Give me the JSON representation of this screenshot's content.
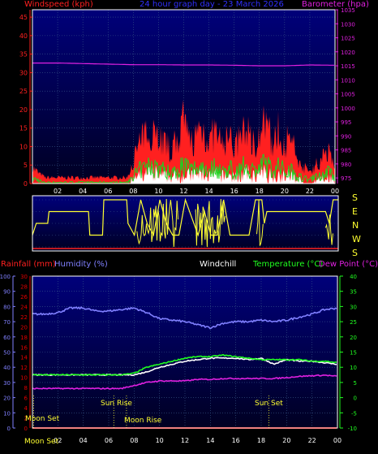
{
  "colors": {
    "background": "#000000",
    "plot_bg_top": "#00007a",
    "plot_bg_bottom": "#000033",
    "grid": "#3a5a8a",
    "frame": "#ffffff",
    "wind": "#ff2020",
    "gust_green": "#20d020",
    "gust_white": "#ffffff",
    "barometer": "#e020e0",
    "direction": "#ffff30",
    "rain": "#e00000",
    "humidity": "#8080ff",
    "windchill": "#ffffff",
    "temperature": "#20ff20",
    "dewpoint": "#e020e0"
  },
  "panel1": {
    "label_windspeed": "Windspeed (kph)",
    "label_title": "24 hour graph day - 23 March 2026",
    "label_barometer": "Barometer (hpa)"
  },
  "panel2": {
    "compass": [
      "S",
      "E",
      "N",
      "W",
      "S"
    ]
  },
  "panel3": {
    "label_rainfall": "Rainfall (mm)",
    "label_humidity": "Humidity (%)",
    "label_windchill": "Windchill",
    "label_temperature": "Temperature (°C)",
    "label_dewpoint": "Dew Point (°C)",
    "ann_moonset_top": "Moon Set",
    "ann_sunrise": "Sun Rise",
    "ann_moonrise": "Moon Rise",
    "ann_sunset": "Sun Set",
    "ann_moonset_bottom": "Moon Set"
  },
  "chart_data": [
    {
      "type": "area",
      "title": "24 hour graph day - 23 March 2026",
      "xlabel": "",
      "x_ticks": [
        "02",
        "04",
        "06",
        "08",
        "10",
        "12",
        "14",
        "16",
        "18",
        "20",
        "22",
        "00"
      ],
      "y_left": {
        "label": "Windspeed (kph)",
        "range": [
          0,
          47
        ],
        "ticks": [
          0,
          5,
          10,
          15,
          20,
          25,
          30,
          35,
          40,
          45
        ]
      },
      "y_right": {
        "label": "Barometer (hpa)",
        "range": [
          973,
          1035
        ],
        "ticks": [
          975,
          980,
          985,
          990,
          995,
          1000,
          1005,
          1010,
          1015,
          1020,
          1025,
          1030,
          1035
        ]
      },
      "grid": true,
      "series": [
        {
          "name": "Windspeed (kph)",
          "axis": "left",
          "x_hours": [
            0,
            1,
            2,
            3,
            4,
            5,
            6,
            7,
            7.5,
            8,
            8.5,
            9,
            9.5,
            10,
            10.5,
            11,
            11.5,
            12,
            12.5,
            13,
            13.5,
            14,
            14.5,
            15,
            15.5,
            16,
            16.5,
            17,
            17.5,
            18,
            18.5,
            19,
            19.5,
            20,
            20.5,
            21,
            21.5,
            22,
            22.5,
            23,
            23.5,
            24
          ],
          "values": [
            4,
            1,
            1,
            1,
            1,
            1,
            1,
            1,
            1,
            6,
            10,
            12,
            14,
            12,
            10,
            8,
            11,
            15,
            10,
            12,
            14,
            10,
            13,
            9,
            12,
            9,
            11,
            14,
            10,
            12,
            15,
            10,
            13,
            10,
            11,
            6,
            4,
            3,
            5,
            6,
            9,
            4
          ]
        },
        {
          "name": "Barometer (hpa)",
          "axis": "right",
          "x_hours": [
            0,
            2,
            4,
            6,
            8,
            10,
            12,
            14,
            16,
            18,
            19,
            20,
            22,
            24
          ],
          "values": [
            1016,
            1016,
            1015.8,
            1015.6,
            1015.4,
            1015.4,
            1015.3,
            1015.3,
            1015.2,
            1015,
            1015,
            1015,
            1015.3,
            1015.2
          ]
        }
      ]
    },
    {
      "type": "line",
      "title": "",
      "x_ticks": [],
      "y_categories": [
        "S",
        "E",
        "N",
        "W",
        "S"
      ],
      "series": [
        {
          "name": "",
          "x_hours": [
            0,
            0.3,
            1.2,
            1.3,
            1.8,
            3.5,
            4.4,
            4.5,
            5.5,
            5.6,
            7.4,
            7.5,
            8,
            8.5,
            9,
            9.5,
            10,
            10.5,
            11,
            11.5,
            12,
            13,
            13.5,
            14,
            14.5,
            15,
            15.5,
            17,
            17.5,
            18,
            18.2,
            18.4,
            20,
            21,
            22,
            23,
            23.3,
            23.6,
            24
          ],
          "direction": [
            "W",
            "N",
            "N",
            "E",
            "E",
            "E",
            "E",
            "W",
            "W",
            "S",
            "S",
            "N",
            "W",
            "S",
            "N",
            "W",
            "S",
            "N",
            "W",
            "W",
            "S",
            "W",
            "E",
            "W",
            "W",
            "S",
            "W",
            "W",
            "S",
            "S",
            "N",
            "E",
            "E",
            "E",
            "E",
            "E",
            "N",
            "S",
            "S"
          ]
        }
      ]
    },
    {
      "type": "line",
      "title": "",
      "x_ticks": [
        "02",
        "04",
        "06",
        "08",
        "10",
        "12",
        "14",
        "16",
        "18",
        "20",
        "22",
        "00"
      ],
      "x_tick_prefix": "Moon Set",
      "y_axes": [
        {
          "label": "Humidity (%)",
          "range": [
            0,
            100
          ],
          "ticks": [
            0,
            10,
            20,
            30,
            40,
            50,
            60,
            70,
            80,
            90,
            100
          ]
        },
        {
          "label": "Rainfall (mm)",
          "range": [
            0,
            30
          ],
          "ticks": [
            0,
            2,
            4,
            6,
            8,
            10,
            12,
            14,
            16,
            18,
            20,
            22,
            24,
            26,
            28,
            30
          ]
        },
        {
          "label": "Temperature (°C)",
          "range": [
            -10,
            40
          ],
          "ticks": [
            -10,
            -5,
            0,
            5,
            10,
            15,
            20,
            25,
            30,
            35,
            40
          ]
        }
      ],
      "grid": true,
      "series": [
        {
          "name": "Humidity (%)",
          "axis": "Humidity (%)",
          "x_hours": [
            0,
            1,
            2,
            3,
            4,
            5,
            6,
            7,
            8,
            9,
            10,
            11,
            12,
            13,
            14,
            15,
            16,
            17,
            18,
            19,
            20,
            21,
            22,
            23,
            24
          ],
          "values": [
            75,
            75,
            76,
            79,
            79,
            77,
            77,
            78,
            79,
            76,
            72,
            71,
            70,
            68,
            66,
            69,
            70,
            70,
            71,
            70,
            71,
            73,
            75,
            78,
            79
          ]
        },
        {
          "name": "Rainfall (mm)",
          "axis": "Rainfall (mm)",
          "x_hours": [
            0,
            24
          ],
          "values": [
            0,
            0
          ]
        },
        {
          "name": "Windchill",
          "axis": "Temperature (°C)",
          "x_hours": [
            0,
            2,
            4,
            6,
            8,
            9,
            10,
            11,
            12,
            13,
            14,
            15,
            16,
            17,
            18,
            19,
            20,
            21,
            22,
            23,
            24
          ],
          "values": [
            7.5,
            7.5,
            7.5,
            7.5,
            7.5,
            8.5,
            10,
            11,
            12,
            12.5,
            13,
            13,
            13,
            12.5,
            13,
            11,
            12.5,
            12,
            12,
            11.5,
            11
          ]
        },
        {
          "name": "Temperature (°C)",
          "axis": "Temperature (°C)",
          "x_hours": [
            0,
            2,
            4,
            6,
            7,
            8,
            9,
            10,
            11,
            12,
            13,
            14,
            15,
            16,
            17,
            18,
            19,
            20,
            21,
            22,
            23,
            24
          ],
          "values": [
            7.5,
            7.5,
            7.5,
            7.5,
            7.5,
            8,
            10,
            11,
            12,
            13,
            13.5,
            13.5,
            14,
            13.5,
            13,
            12.5,
            12.5,
            12.5,
            12.5,
            12,
            12,
            11.5
          ]
        },
        {
          "name": "Dew Point (°C)",
          "axis": "Temperature (°C)",
          "x_hours": [
            0,
            2,
            4,
            6,
            7,
            8,
            9,
            10,
            11,
            12,
            13,
            14,
            15,
            16,
            17,
            18,
            19,
            20,
            21,
            22,
            23,
            24
          ],
          "values": [
            3,
            3,
            3,
            3,
            3,
            4,
            5,
            5.5,
            5.5,
            5.5,
            6,
            6,
            6.3,
            6.3,
            6.3,
            6.3,
            6.3,
            6.6,
            7,
            7.2,
            7.4,
            7
          ]
        }
      ],
      "markers": [
        {
          "label": "Moon Set",
          "hour": 0.1
        },
        {
          "label": "Sun Rise",
          "hour": 6.4
        },
        {
          "label": "Moon Rise",
          "hour": 7.4
        },
        {
          "label": "Sun Set",
          "hour": 18.6
        }
      ]
    }
  ]
}
